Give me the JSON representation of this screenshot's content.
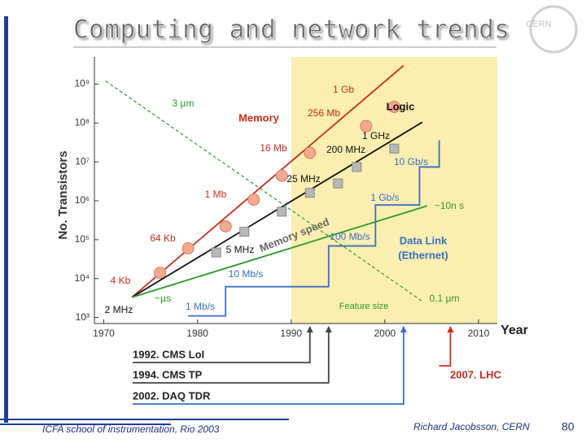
{
  "slide": {
    "title": "Computing and network trends",
    "logo": "CERN",
    "footer_left": "ICFA school of instrumentation, Rio 2003",
    "footer_right": "Richard Jacobsson, CERN",
    "page_number": "80"
  },
  "chart_data": {
    "type": "line",
    "xlabel": "Year",
    "ylabel": "No. Transistors",
    "log_y": true,
    "xlim": [
      1969,
      2012
    ],
    "ylim": [
      700,
      5000000000
    ],
    "xticks": [
      1970,
      1980,
      1990,
      2000,
      2010
    ],
    "yticks": [
      {
        "value": 1000,
        "label": "10³"
      },
      {
        "value": 10000,
        "label": "10⁴"
      },
      {
        "value": 100000,
        "label": "10⁵"
      },
      {
        "value": 1000000,
        "label": "10⁶"
      },
      {
        "value": 10000000,
        "label": "10⁷"
      },
      {
        "value": 100000000,
        "label": "10⁸"
      },
      {
        "value": 1000000000,
        "label": "10⁹"
      }
    ],
    "shaded_from": 1990,
    "shade_color": "#fbeeb0",
    "series": [
      {
        "name": "Memory",
        "color": "#cc2b1d",
        "x": [
          1973,
          2002
        ],
        "values": [
          3300,
          3000000000
        ],
        "marker": "circle",
        "marker_color": "#f5a98e",
        "point_x": [
          1976,
          1979,
          1983,
          1986,
          1989,
          1992,
          1998,
          2001
        ],
        "point_values": [
          14000,
          60000,
          220000,
          1070000,
          4400000,
          17000000,
          83000000,
          260000000
        ]
      },
      {
        "name": "Logic",
        "color": "#111111",
        "x": [
          1973,
          2004
        ],
        "values": [
          3300,
          105000000
        ],
        "marker": "square",
        "marker_color": "#b8b8b8",
        "point_x": [
          1982,
          1985,
          1989,
          1992,
          1995,
          1997,
          2001
        ],
        "point_values": [
          47000,
          160000,
          525000,
          1600000,
          2800000,
          7400000,
          22000000
        ]
      },
      {
        "name": "Memory speed",
        "color": "#2a9a2a",
        "x": [
          1973,
          2004.5
        ],
        "values": [
          3300,
          740000
        ]
      },
      {
        "name": "Feature size",
        "color": "#2a9a2a",
        "dashed": true,
        "x": [
          1970.2,
          2004
        ],
        "values": [
          1200000000,
          2600
        ]
      },
      {
        "name": "Data Link",
        "color": "#3a6fc4",
        "step": true,
        "x": [
          1979,
          1983,
          1983,
          1994,
          1994,
          1999,
          1999,
          2003.7,
          2003.7,
          2005.8,
          2005.8
        ],
        "values": [
          1100,
          1100,
          6200,
          6200,
          69000,
          69000,
          780000,
          780000,
          7400000,
          7400000,
          36000000
        ]
      }
    ],
    "annotations": [
      {
        "text": "1 Gb",
        "color": "#cc2b1d"
      },
      {
        "text": "3 µm",
        "color": "#2a9a2a"
      },
      {
        "text": "256 Mb",
        "color": "#cc2b1d"
      },
      {
        "text": "1 GHz",
        "color": "#111111"
      },
      {
        "text": "16 Mb",
        "color": "#cc2b1d"
      },
      {
        "text": "200 MHz",
        "color": "#111111"
      },
      {
        "text": "10 Gb/s",
        "color": "#3a6fc4"
      },
      {
        "text": "25 MHz",
        "color": "#111111"
      },
      {
        "text": "1 Mb",
        "color": "#cc2b1d"
      },
      {
        "text": "1 Gb/s",
        "color": "#3a6fc4"
      },
      {
        "text": "~10n s",
        "color": "#2a9a2a"
      },
      {
        "text": "64 Kb",
        "color": "#cc2b1d"
      },
      {
        "text": "100 Mb/s",
        "color": "#3a6fc4"
      },
      {
        "text": "(Ethernet)",
        "color": "#3a6fc4"
      },
      {
        "text": "5 MHz",
        "color": "#111111"
      },
      {
        "text": "10 Mb/s",
        "color": "#3a6fc4"
      },
      {
        "text": "4 Kb",
        "color": "#cc2b1d"
      },
      {
        "text": "~µs",
        "color": "#2a9a2a"
      },
      {
        "text": "0.1 µm",
        "color": "#2a9a2a"
      },
      {
        "text": "2 MHz",
        "color": "#111111"
      },
      {
        "text": "1 Mb/s",
        "color": "#3a6fc4"
      }
    ],
    "milestones": [
      {
        "year": 1992,
        "label": "1992. CMS LoI",
        "color": "#444444"
      },
      {
        "year": 1994,
        "label": "1994. CMS TP",
        "color": "#444444"
      },
      {
        "year": 2002,
        "label": "2002. DAQ TDR",
        "color": "#3a6fc4"
      },
      {
        "year": 2007,
        "label": "2007. LHC",
        "color": "#cc2b1d"
      }
    ]
  }
}
